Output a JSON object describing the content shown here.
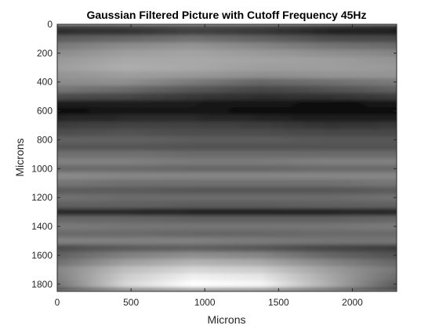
{
  "chart_data": {
    "type": "heatmap",
    "title": "Gaussian Filtered Picture with Cutoff Frequency 45Hz",
    "xlabel": "Microns",
    "ylabel": "Microns",
    "xlim": [
      0,
      2300
    ],
    "ylim": [
      0,
      1850
    ],
    "y_reversed": true,
    "colormap": "gray",
    "grid": false,
    "x_ticks": [
      0,
      500,
      1000,
      1500,
      2000
    ],
    "y_ticks": [
      0,
      200,
      400,
      600,
      800,
      1000,
      1200,
      1400,
      1600,
      1800
    ],
    "intensity_rows": {
      "y": [
        0,
        50,
        100,
        150,
        200,
        250,
        300,
        350,
        400,
        450,
        500,
        550,
        600,
        650,
        700,
        750,
        800,
        850,
        900,
        950,
        1000,
        1050,
        1100,
        1150,
        1200,
        1250,
        1300,
        1350,
        1400,
        1450,
        1500,
        1550,
        1600,
        1650,
        1700,
        1750,
        1800,
        1850
      ],
      "x": [
        0,
        460,
        920,
        1380,
        1840,
        2300
      ],
      "levels": [
        [
          0.28,
          0.3,
          0.32,
          0.3,
          0.24,
          0.2
        ],
        [
          0.18,
          0.2,
          0.26,
          0.22,
          0.14,
          0.12
        ],
        [
          0.36,
          0.4,
          0.44,
          0.38,
          0.3,
          0.28
        ],
        [
          0.48,
          0.55,
          0.58,
          0.52,
          0.45,
          0.42
        ],
        [
          0.55,
          0.62,
          0.64,
          0.6,
          0.56,
          0.52
        ],
        [
          0.6,
          0.66,
          0.66,
          0.64,
          0.62,
          0.58
        ],
        [
          0.62,
          0.68,
          0.66,
          0.62,
          0.62,
          0.6
        ],
        [
          0.58,
          0.62,
          0.6,
          0.56,
          0.58,
          0.58
        ],
        [
          0.55,
          0.56,
          0.48,
          0.4,
          0.44,
          0.48
        ],
        [
          0.46,
          0.42,
          0.34,
          0.28,
          0.32,
          0.38
        ],
        [
          0.3,
          0.28,
          0.22,
          0.18,
          0.2,
          0.24
        ],
        [
          0.1,
          0.12,
          0.1,
          0.08,
          0.06,
          0.08
        ],
        [
          0.06,
          0.08,
          0.08,
          0.06,
          0.04,
          0.06
        ],
        [
          0.14,
          0.16,
          0.16,
          0.14,
          0.1,
          0.12
        ],
        [
          0.24,
          0.26,
          0.26,
          0.24,
          0.2,
          0.22
        ],
        [
          0.3,
          0.32,
          0.3,
          0.3,
          0.28,
          0.28
        ],
        [
          0.38,
          0.38,
          0.36,
          0.36,
          0.34,
          0.34
        ],
        [
          0.34,
          0.34,
          0.32,
          0.32,
          0.32,
          0.32
        ],
        [
          0.44,
          0.44,
          0.42,
          0.42,
          0.42,
          0.42
        ],
        [
          0.5,
          0.5,
          0.48,
          0.48,
          0.5,
          0.5
        ],
        [
          0.42,
          0.42,
          0.4,
          0.4,
          0.42,
          0.42
        ],
        [
          0.54,
          0.52,
          0.52,
          0.52,
          0.52,
          0.52
        ],
        [
          0.46,
          0.44,
          0.44,
          0.44,
          0.44,
          0.46
        ],
        [
          0.36,
          0.36,
          0.34,
          0.34,
          0.34,
          0.36
        ],
        [
          0.44,
          0.42,
          0.42,
          0.42,
          0.42,
          0.44
        ],
        [
          0.38,
          0.38,
          0.36,
          0.36,
          0.38,
          0.38
        ],
        [
          0.16,
          0.16,
          0.14,
          0.14,
          0.14,
          0.16
        ],
        [
          0.4,
          0.4,
          0.38,
          0.38,
          0.38,
          0.4
        ],
        [
          0.48,
          0.46,
          0.46,
          0.46,
          0.46,
          0.48
        ],
        [
          0.42,
          0.42,
          0.4,
          0.4,
          0.42,
          0.42
        ],
        [
          0.5,
          0.5,
          0.5,
          0.48,
          0.46,
          0.46
        ],
        [
          0.3,
          0.36,
          0.38,
          0.34,
          0.28,
          0.24
        ],
        [
          0.38,
          0.5,
          0.56,
          0.52,
          0.4,
          0.32
        ],
        [
          0.44,
          0.62,
          0.7,
          0.66,
          0.52,
          0.4
        ],
        [
          0.52,
          0.74,
          0.84,
          0.8,
          0.62,
          0.46
        ],
        [
          0.5,
          0.8,
          0.94,
          0.9,
          0.66,
          0.42
        ],
        [
          0.46,
          0.84,
          1.0,
          0.96,
          0.68,
          0.36
        ],
        [
          0.3,
          0.48,
          0.56,
          0.52,
          0.4,
          0.26
        ]
      ]
    }
  }
}
